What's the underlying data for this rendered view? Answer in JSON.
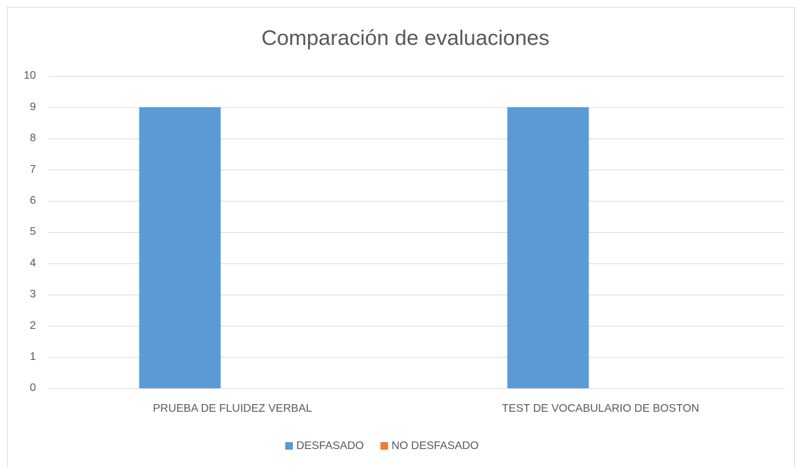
{
  "chart_data": {
    "type": "bar",
    "title": "Comparación de evaluaciones",
    "categories": [
      "PRUEBA DE FLUIDEZ VERBAL",
      "TEST DE VOCABULARIO DE BOSTON"
    ],
    "series": [
      {
        "name": "DESFASADO",
        "color": "#5b9bd5",
        "values": [
          9,
          9
        ]
      },
      {
        "name": "NO DESFASADO",
        "color": "#ed7d31",
        "values": [
          0,
          0
        ]
      }
    ],
    "ylim": [
      0,
      10
    ],
    "yticks": [
      0,
      1,
      2,
      3,
      4,
      5,
      6,
      7,
      8,
      9,
      10
    ],
    "grid": true,
    "legend": "bottom"
  }
}
